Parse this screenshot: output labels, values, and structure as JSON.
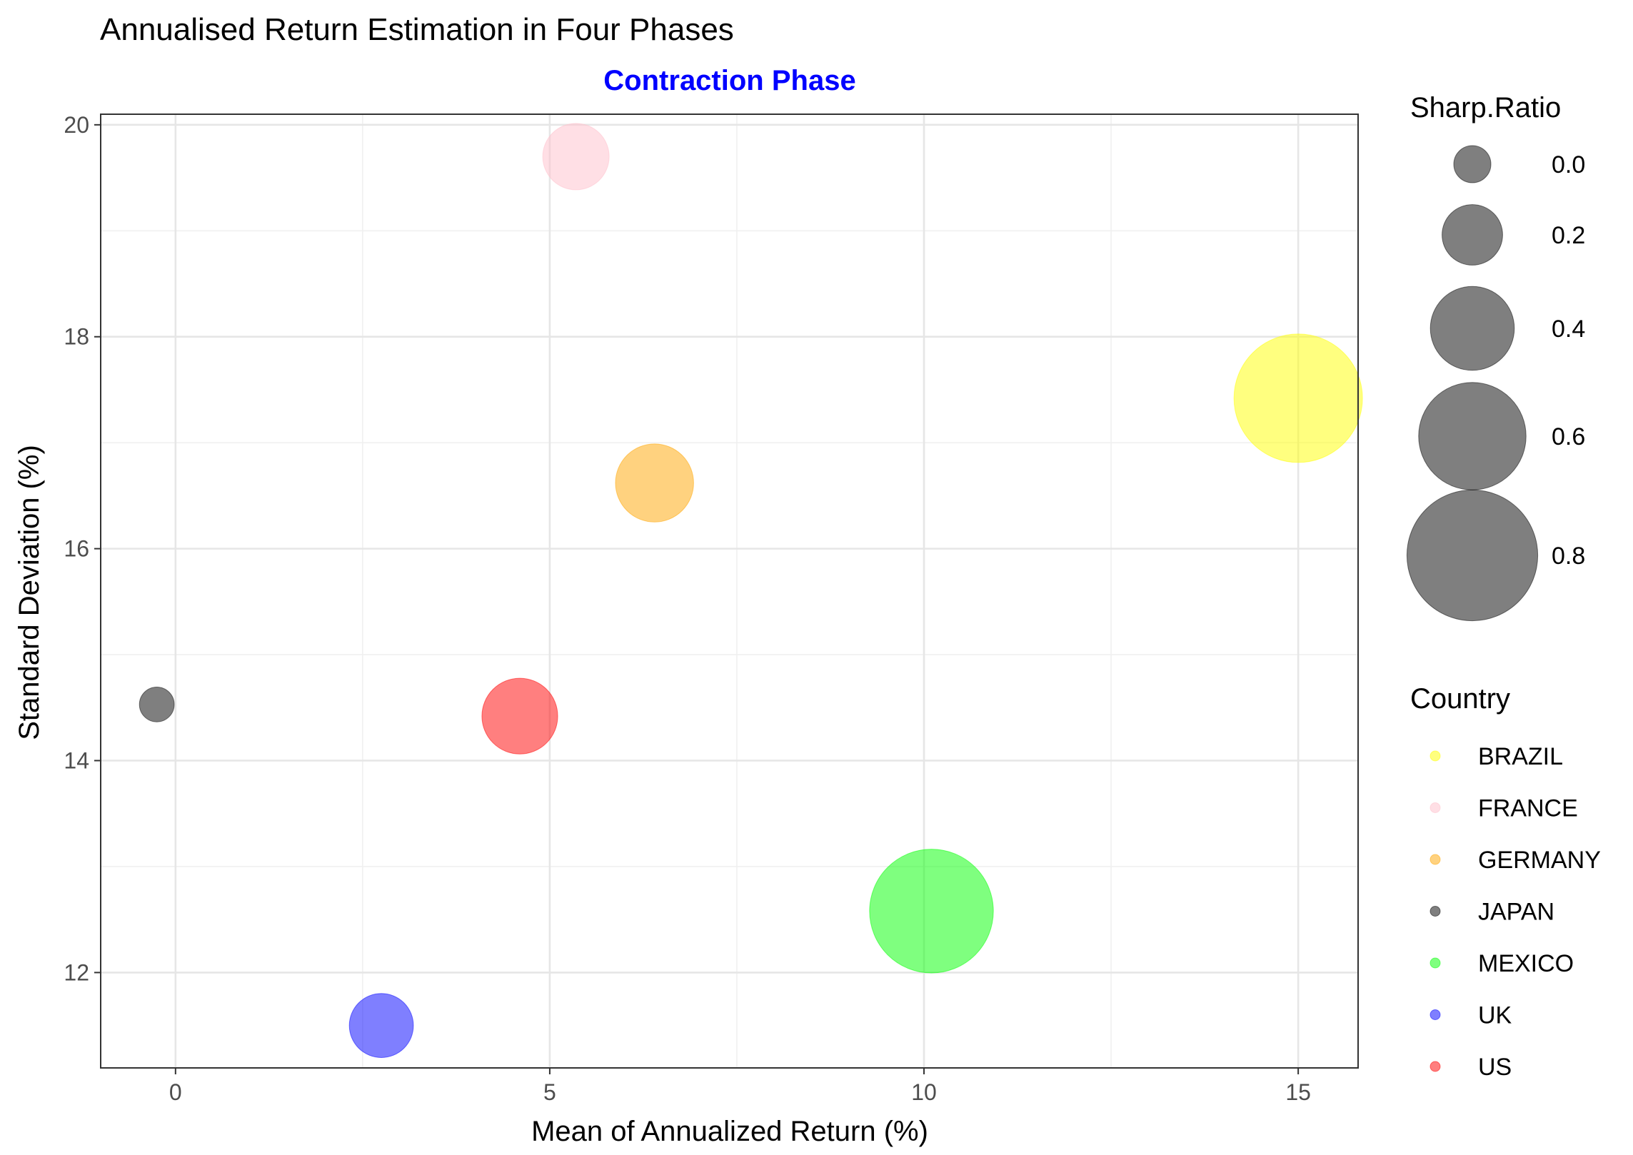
{
  "chart_data": {
    "type": "scatter",
    "title": "Annualised Return Estimation in Four Phases",
    "subtitle": "Contraction Phase",
    "subtitle_color": "#0000ff",
    "xlabel": "Mean of Annualized Return (%)",
    "ylabel": "Standard Deviation (%)",
    "xlim": [
      -1.0,
      15.8
    ],
    "ylim": [
      11.1,
      20.1
    ],
    "x_ticks": [
      0,
      5,
      10,
      15
    ],
    "y_ticks": [
      12,
      14,
      16,
      18,
      20
    ],
    "x_tick_labels": [
      "0",
      "5",
      "10",
      "15"
    ],
    "y_tick_labels": [
      "12",
      "14",
      "16",
      "18",
      "20"
    ],
    "grid": true,
    "legend_placement": "right",
    "point_opacity": 0.5,
    "points": [
      {
        "country": "BRAZIL",
        "x": 15.0,
        "y": 17.42,
        "sharpe": 0.78,
        "color": "#ffff00"
      },
      {
        "country": "FRANCE",
        "x": 5.35,
        "y": 19.7,
        "sharpe": 0.25,
        "color": "#ffc0cb"
      },
      {
        "country": "GERMANY",
        "x": 6.4,
        "y": 16.62,
        "sharpe": 0.35,
        "color": "#ffa500"
      },
      {
        "country": "JAPAN",
        "x": -0.25,
        "y": 14.53,
        "sharpe": -0.02,
        "color": "#000000"
      },
      {
        "country": "MEXICO",
        "x": 10.1,
        "y": 12.58,
        "sharpe": 0.74,
        "color": "#00ff00"
      },
      {
        "country": "UK",
        "x": 2.75,
        "y": 11.5,
        "sharpe": 0.23,
        "color": "#0000ff"
      },
      {
        "country": "US",
        "x": 4.6,
        "y": 14.42,
        "sharpe": 0.33,
        "color": "#ff0000"
      }
    ],
    "size_legend": {
      "title": "Sharp.Ratio",
      "color": "#000000",
      "entries": [
        {
          "label": "0.0",
          "value": 0.0
        },
        {
          "label": "0.2",
          "value": 0.2
        },
        {
          "label": "0.4",
          "value": 0.4
        },
        {
          "label": "0.6",
          "value": 0.6
        },
        {
          "label": "0.8",
          "value": 0.8
        }
      ]
    },
    "color_legend": {
      "title": "Country",
      "entries": [
        {
          "label": "BRAZIL",
          "color": "#ffff00"
        },
        {
          "label": "FRANCE",
          "color": "#ffc0cb"
        },
        {
          "label": "GERMANY",
          "color": "#ffa500"
        },
        {
          "label": "JAPAN",
          "color": "#000000"
        },
        {
          "label": "MEXICO",
          "color": "#00ff00"
        },
        {
          "label": "UK",
          "color": "#0000ff"
        },
        {
          "label": "US",
          "color": "#ff0000"
        }
      ]
    }
  }
}
